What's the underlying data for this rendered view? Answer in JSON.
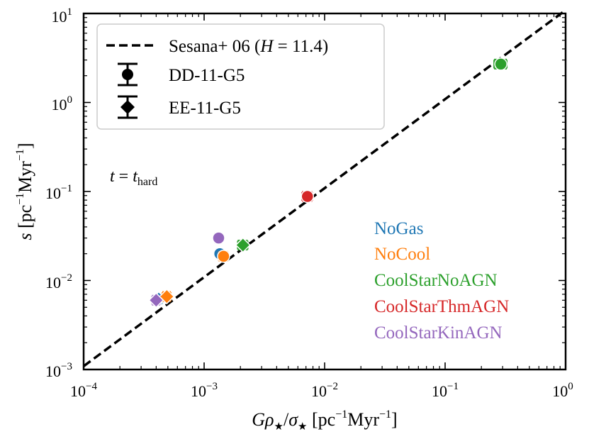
{
  "chart_data": {
    "type": "scatter",
    "x_scale": "log",
    "y_scale": "log",
    "xlim": [
      0.0001,
      1
    ],
    "ylim": [
      0.001,
      10
    ],
    "xticks": [
      0.0001,
      0.001,
      0.01,
      0.1,
      1
    ],
    "yticks": [
      0.001,
      0.01,
      0.1,
      1,
      10
    ],
    "xtick_labels": [
      {
        "base": "10",
        "exp": "−4"
      },
      {
        "base": "10",
        "exp": "−3"
      },
      {
        "base": "10",
        "exp": "−2"
      },
      {
        "base": "10",
        "exp": "−1"
      },
      {
        "base": "10",
        "exp": "0"
      }
    ],
    "ytick_labels": [
      {
        "base": "10",
        "exp": "−3"
      },
      {
        "base": "10",
        "exp": "−2"
      },
      {
        "base": "10",
        "exp": "−1"
      },
      {
        "base": "10",
        "exp": "0"
      },
      {
        "base": "10",
        "exp": "1"
      }
    ],
    "xlabel": {
      "pre": "G",
      "rho": "ρ",
      "star1": "★",
      "slash": "/",
      "sigma": "σ",
      "star2": "★",
      "unit_open": " [pc",
      "exp1": "−1",
      "unit_mid": "Myr",
      "exp2": "−1",
      "unit_close": "]"
    },
    "ylabel": {
      "var": "s",
      "unit_open": " [pc",
      "exp1": "−1",
      "unit_mid": "Myr",
      "exp2": "−1",
      "unit_close": "]"
    },
    "fit_line": {
      "label_pre": "Sesana+ 06 (",
      "label_var": "H",
      "label_eq": " = 11.4)",
      "H": 11.4,
      "x_range": [
        0.0001,
        1
      ]
    },
    "annotation": {
      "var": "t",
      "eq": " = ",
      "var2": "t",
      "sub": "hard"
    },
    "legend": {
      "markers": [
        {
          "label": "DD-11-G5",
          "marker": "circle"
        },
        {
          "label": "EE-11-G5",
          "marker": "diamond"
        }
      ]
    },
    "sims": [
      {
        "name": "NoGas",
        "color": "#1f77b4"
      },
      {
        "name": "NoCool",
        "color": "#ff7f0e"
      },
      {
        "name": "CoolStarNoAGN",
        "color": "#2ca02c"
      },
      {
        "name": "CoolStarThmAGN",
        "color": "#d62728"
      },
      {
        "name": "CoolStarKinAGN",
        "color": "#9467bd"
      }
    ],
    "points": [
      {
        "sim": "NoGas",
        "marker": "diamond",
        "x": 0.00042,
        "y": 0.0062,
        "xerr_lo": 0.00039,
        "xerr_hi": 0.00045
      },
      {
        "sim": "NoCool",
        "marker": "diamond",
        "x": 0.00049,
        "y": 0.0066,
        "xerr_lo": 0.00045,
        "xerr_hi": 0.00053
      },
      {
        "sim": "CoolStarKinAGN",
        "marker": "diamond",
        "x": 0.0004,
        "y": 0.006,
        "xerr_lo": 0.00037,
        "xerr_hi": 0.00043
      },
      {
        "sim": "NoGas",
        "marker": "circle",
        "x": 0.00135,
        "y": 0.02,
        "xerr_lo": 0.00125,
        "xerr_hi": 0.00145
      },
      {
        "sim": "CoolStarKinAGN",
        "marker": "circle",
        "x": 0.00132,
        "y": 0.03,
        "xerr_lo": 0.00122,
        "xerr_hi": 0.00142
      },
      {
        "sim": "NoCool",
        "marker": "circle",
        "x": 0.00145,
        "y": 0.0187,
        "xerr_lo": 0.00132,
        "xerr_hi": 0.00158
      },
      {
        "sim": "CoolStarNoAGN",
        "marker": "diamond",
        "x": 0.0021,
        "y": 0.025,
        "xerr_lo": 0.0019,
        "xerr_hi": 0.0023
      },
      {
        "sim": "CoolStarThmAGN",
        "marker": "circle",
        "x": 0.0072,
        "y": 0.088,
        "xerr_lo": 0.0065,
        "xerr_hi": 0.0079
      },
      {
        "sim": "CoolStarNoAGN",
        "marker": "circle",
        "x": 0.29,
        "y": 2.7,
        "xerr_lo": 0.255,
        "xerr_hi": 0.325
      }
    ]
  }
}
